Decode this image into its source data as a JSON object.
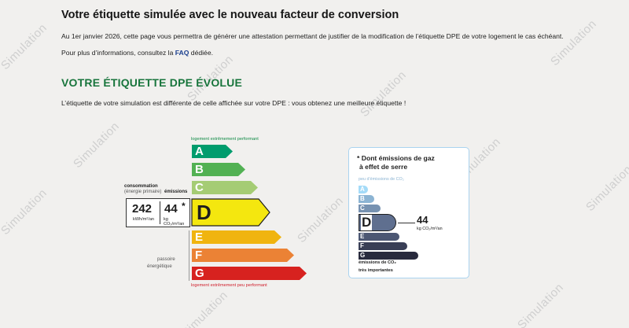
{
  "watermark": "Simulation",
  "header": {
    "title": "Votre étiquette simulée avec le nouveau facteur de conversion",
    "para1": "Au 1er janvier 2026, cette page vous permettra de générer une attestation permettant de justifier de la modification de l’étiquette DPE de votre logement le cas échéant.",
    "para2_prefix": "Pour plus d’informations, consultez la ",
    "para2_link": "FAQ",
    "para2_suffix": " dédiée."
  },
  "dpe": {
    "title": "VOTRE ÉTIQUETTE DPE ÉVOLUE",
    "intro": "L’étiquette de votre simulation est différente de celle affichée sur votre DPE : vous obtenez une meilleure étiquette !",
    "top_label": "logement extrêmement performant",
    "bottom_label": "logement extrêmement peu performant",
    "consumption_label": "consommation",
    "consumption_sub": "(énergie primaire)",
    "emissions_label": "émissions",
    "consumption_value": "242",
    "consumption_unit": "kWh/m²/an",
    "emissions_value": "44",
    "emissions_star": "*",
    "emissions_unit": "kg CO₂/m²/an",
    "passoire_line1": "passoire",
    "passoire_line2": "énergétique",
    "current_class": "D",
    "classes": [
      {
        "letter": "A",
        "color": "#009c6d"
      },
      {
        "letter": "B",
        "color": "#52b153"
      },
      {
        "letter": "C",
        "color": "#a5cc74"
      },
      {
        "letter": "D",
        "color": "#f4e70f"
      },
      {
        "letter": "E",
        "color": "#f0b40f"
      },
      {
        "letter": "F",
        "color": "#eb8235"
      },
      {
        "letter": "G",
        "color": "#d7221f"
      }
    ]
  },
  "ges": {
    "title_line1": "* Dont émissions de gaz",
    "title_line2": "à effet de serre",
    "top_label": "peu d’émissions de CO₂",
    "value": "44",
    "unit": "kg CO₂/m²/an",
    "current_class": "D",
    "bottom_line1": "émissions de CO₂",
    "bottom_line2": "très importantes",
    "classes": [
      {
        "letter": "A",
        "color": "#a4dbf8"
      },
      {
        "letter": "B",
        "color": "#8cb4d3"
      },
      {
        "letter": "C",
        "color": "#7792b1"
      },
      {
        "letter": "D",
        "color": "#5f6f8f"
      },
      {
        "letter": "E",
        "color": "#4c5773"
      },
      {
        "letter": "F",
        "color": "#393f56"
      },
      {
        "letter": "G",
        "color": "#282a3d"
      }
    ]
  }
}
